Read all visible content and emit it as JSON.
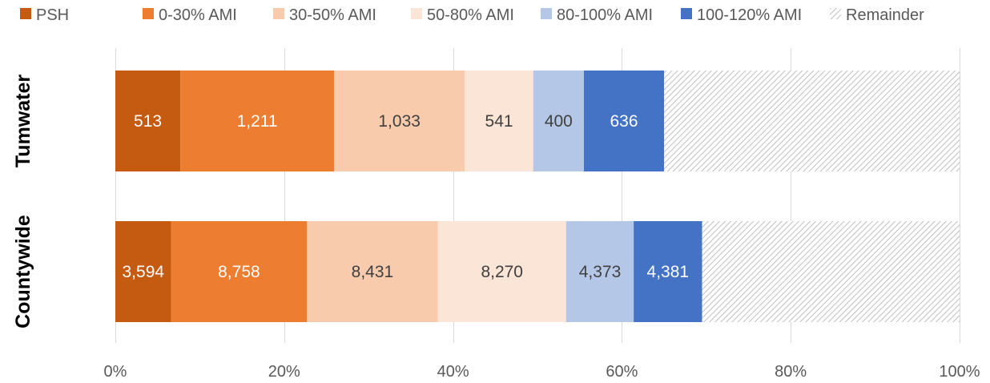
{
  "chart_data": {
    "type": "bar",
    "orientation": "horizontal",
    "stacked": "percent",
    "categories": [
      "Tumwater",
      "Countywide"
    ],
    "series": [
      {
        "name": "PSH",
        "color": "#c55a11",
        "label_color": "#ffffff",
        "values": [
          513,
          3594
        ],
        "labels": [
          "513",
          "3,594"
        ],
        "fractions": [
          0.077,
          0.066
        ]
      },
      {
        "name": "0-30% AMI",
        "color": "#ed7d31",
        "label_color": "#ffffff",
        "values": [
          1211,
          8758
        ],
        "labels": [
          "1,211",
          "8,758"
        ],
        "fractions": [
          0.182,
          0.161
        ]
      },
      {
        "name": "30-50% AMI",
        "color": "#f8cbad",
        "label_color": "#404040",
        "values": [
          1033,
          8431
        ],
        "labels": [
          "1,033",
          "8,431"
        ],
        "fractions": [
          0.155,
          0.155
        ]
      },
      {
        "name": "50-80% AMI",
        "color": "#fbe5d6",
        "label_color": "#404040",
        "values": [
          541,
          8270
        ],
        "labels": [
          "541",
          "8,270"
        ],
        "fractions": [
          0.081,
          0.152
        ]
      },
      {
        "name": "80-100% AMI",
        "color": "#b4c7e7",
        "label_color": "#404040",
        "values": [
          400,
          4373
        ],
        "labels": [
          "400",
          "4,373"
        ],
        "fractions": [
          0.06,
          0.08
        ]
      },
      {
        "name": "100-120% AMI",
        "color": "#4472c4",
        "label_color": "#ffffff",
        "values": [
          636,
          4381
        ],
        "labels": [
          "636",
          "4,381"
        ],
        "fractions": [
          0.095,
          0.081
        ]
      },
      {
        "name": "Remainder",
        "color": "#d9d9d9",
        "pattern": "diagonal-hatch",
        "values": [
          null,
          null
        ],
        "labels": [
          "",
          ""
        ],
        "fractions": [
          0.35,
          0.305
        ]
      }
    ],
    "xaxis": {
      "ticks": [
        "0%",
        "20%",
        "40%",
        "60%",
        "80%",
        "100%"
      ],
      "tick_values": [
        0,
        0.2,
        0.4,
        0.6,
        0.8,
        1.0
      ],
      "xlim": [
        0,
        1
      ]
    },
    "grid": true,
    "legend_position": "top"
  }
}
